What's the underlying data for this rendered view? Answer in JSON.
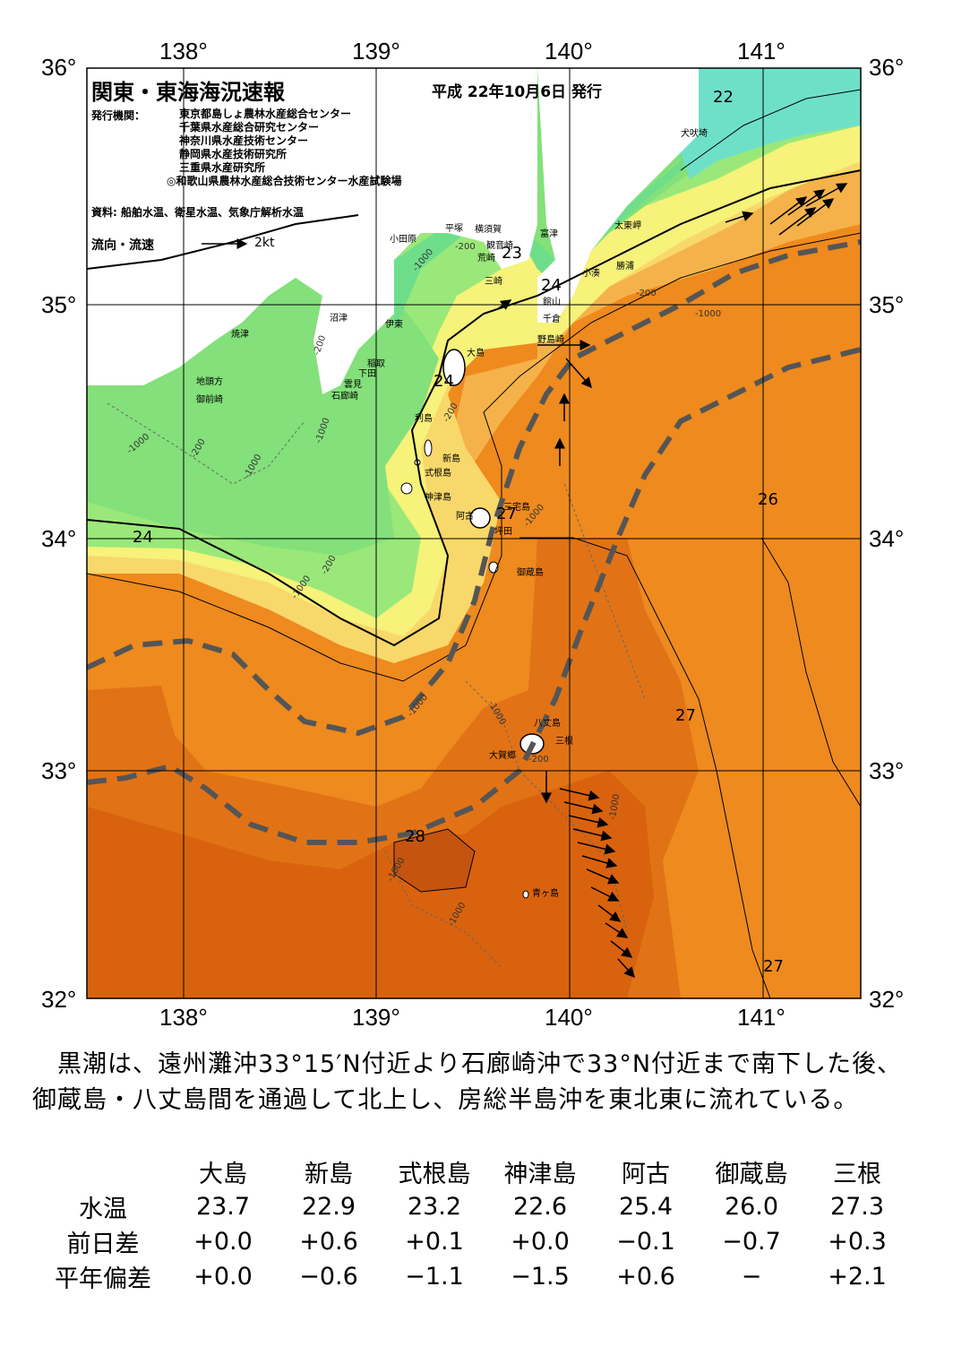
{
  "header": {
    "title": "関東・東海海況速報",
    "issue_date": "平成 22年10月6日 発行",
    "issuer_label": "発行機関：",
    "issuers": [
      "東京都島しょ農林水産総合センター",
      "千葉県水産総合研究センター",
      "神奈川県水産技術センター",
      "静岡県水産技術研究所",
      "三重県水産研究所",
      "◎和歌山県農林水産総合技術センター水産試験場"
    ],
    "source": "資料: 船舶水温、衛星水温、気象庁解析水温",
    "current_legend": "流向・流速",
    "current_scale": "2kt"
  },
  "axes": {
    "lon_labels": [
      "138°",
      "139°",
      "140°",
      "141°"
    ],
    "lat_labels": [
      "36°",
      "35°",
      "34°",
      "33°",
      "32°"
    ]
  },
  "isotherm_labels": [
    "22",
    "23",
    "24",
    "24",
    "24",
    "27",
    "26",
    "27",
    "28",
    "27"
  ],
  "depth_labels": [
    "-200",
    "-1000"
  ],
  "place_names": {
    "inubozaki": "犬吠埼",
    "taitomisaki": "太東岬",
    "katsuura": "勝浦",
    "kominato": "小湊",
    "futtsu": "富津",
    "yokosuka": "横須賀",
    "kannonzaki": "観音崎",
    "arasaki": "荒崎",
    "misaki": "三崎",
    "tateyama": "館山",
    "chikura": "千倉",
    "nojimazaki": "野島崎",
    "odawara": "小田原",
    "hiratsuka": "平塚",
    "numazu": "沼津",
    "ito": "伊東",
    "yaizu": "焼津",
    "inatori": "稲取",
    "shimoda": "下田",
    "kumomi": "雲見",
    "irozaki": "石廊崎",
    "jitokata": "地頭方",
    "omaezaki": "御前崎",
    "oshima": "大島",
    "toshima": "利島",
    "niijima": "新島",
    "shikinejima": "式根島",
    "kozushima": "神津島",
    "miyakejima": "三宅島",
    "ako": "阿古",
    "tsubota": "坪田",
    "mikurajima": "御蔵島",
    "hachijojima": "八丈島",
    "mitsune": "三根",
    "okago": "大賀郷",
    "aogashima": "青ヶ島"
  },
  "summary": [
    "　黒潮は、遠州灘沖33°15′N付近より石廊崎沖で33°N付近まで南下した後、",
    "御蔵島・八丈島間を通過して北上し、房総半島沖を東北東に流れている。"
  ],
  "observations": {
    "stations": [
      "大島",
      "新島",
      "式根島",
      "神津島",
      "阿古",
      "御蔵島",
      "三根"
    ],
    "rows": [
      {
        "label": "水温",
        "values": [
          "23.7",
          "22.9",
          "23.2",
          "22.6",
          "25.4",
          "26.0",
          "27.3"
        ]
      },
      {
        "label": "前日差",
        "values": [
          "+0.0",
          "+0.6",
          "+0.1",
          "+0.0",
          "−0.1",
          "−0.7",
          "+0.3"
        ]
      },
      {
        "label": "平年偏差",
        "values": [
          "+0.0",
          "−0.6",
          "−1.1",
          "−1.5",
          "+0.6",
          "−",
          "+2.1"
        ]
      }
    ]
  },
  "colors": {
    "t22": "#6fe0c8",
    "t23": "#6fde8a",
    "t24": "#9ae87a",
    "t25": "#f6f27a",
    "t25b": "#f8d86a",
    "t26": "#f5b24a",
    "t27": "#ee8a1e",
    "t28": "#d9620e",
    "t28b": "#c45410",
    "land": "#ffffff",
    "kuroshio_axis": "#555555"
  }
}
